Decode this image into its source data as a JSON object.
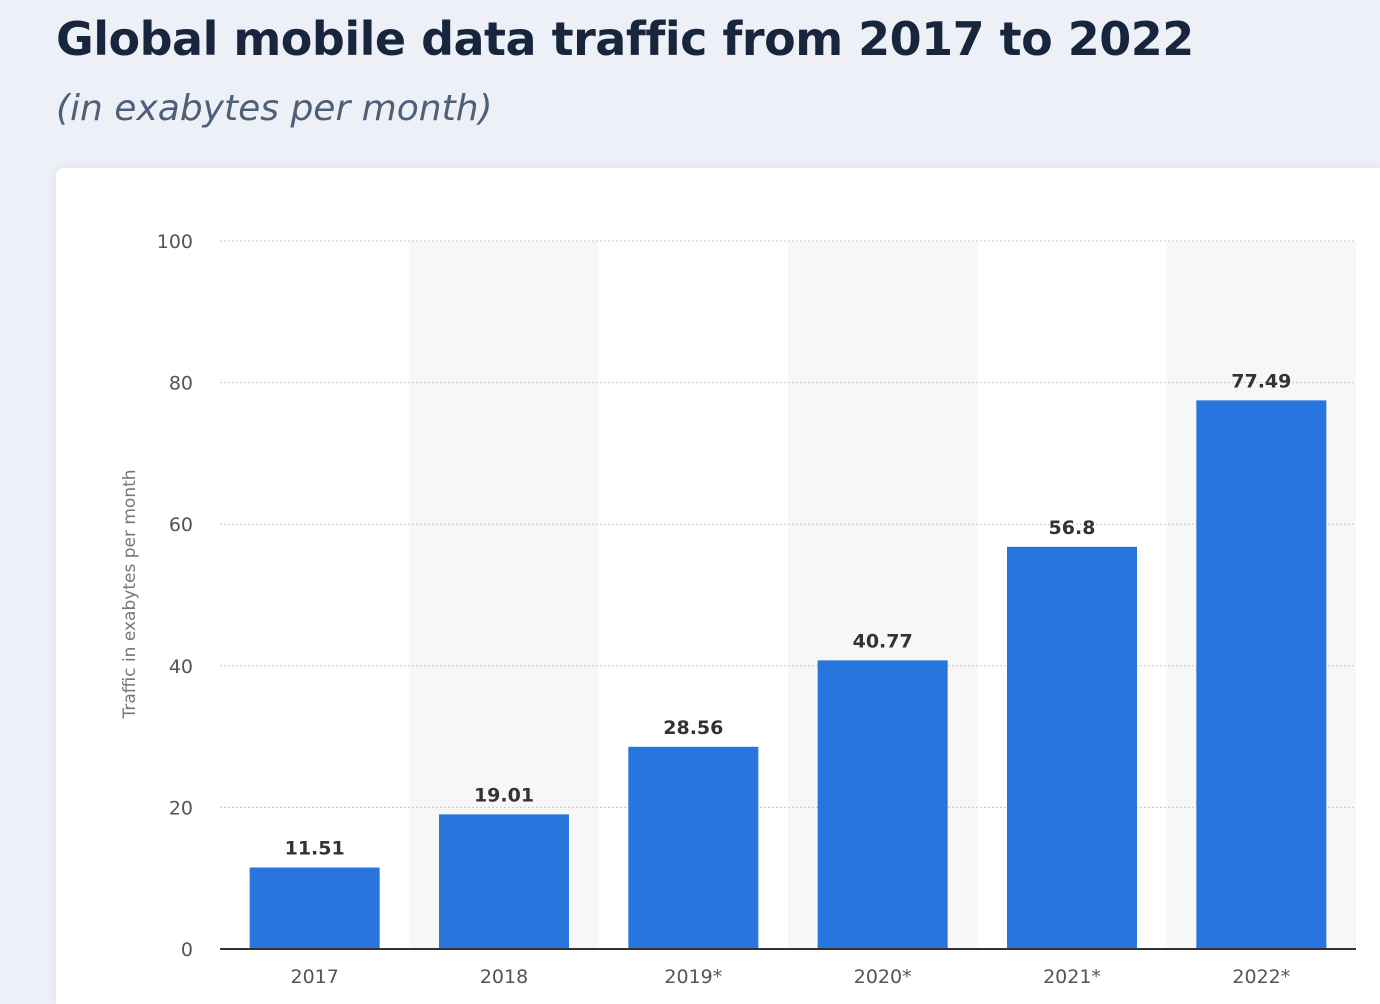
{
  "header": {
    "title": "Global mobile data traffic from 2017 to 2022",
    "subtitle": "(in exabytes per month)"
  },
  "chart_data": {
    "type": "bar",
    "title": "Global mobile data traffic from 2017 to 2022",
    "subtitle": "(in exabytes per month)",
    "xlabel": "",
    "ylabel": "Traffic in exabytes per month",
    "categories": [
      "2017",
      "2018",
      "2019*",
      "2020*",
      "2021*",
      "2022*"
    ],
    "values": [
      11.51,
      19.01,
      28.56,
      40.77,
      56.8,
      77.49
    ],
    "data_labels": [
      "11.51",
      "19.01",
      "28.56",
      "40.77",
      "56.8",
      "77.49"
    ],
    "ylim": [
      0,
      100
    ],
    "yticks": [
      0,
      20,
      40,
      60,
      80,
      100
    ],
    "grid": true,
    "legend": "none",
    "colors": {
      "bar": "#2876dd",
      "alt_band": "#f7f7f7",
      "grid": "#c8c8c8",
      "axis": "#333333"
    }
  }
}
